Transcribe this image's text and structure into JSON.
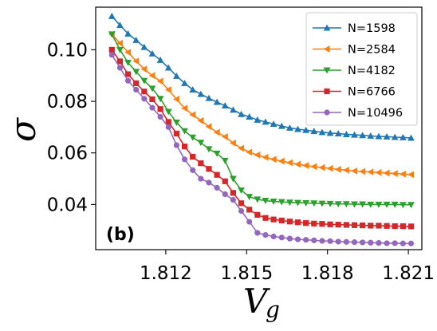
{
  "chart_data": {
    "type": "line",
    "title": "",
    "panel_label": "(b)",
    "xlabel": "V",
    "xlabel_sub": "g",
    "ylabel": "σ",
    "xlim": [
      1.8094,
      1.8215
    ],
    "ylim": [
      0.0225,
      0.1165
    ],
    "xticks": [
      1.812,
      1.815,
      1.818,
      1.821
    ],
    "xtick_labels": [
      "1.812",
      "1.815",
      "1.818",
      "1.821"
    ],
    "yticks": [
      0.04,
      0.06,
      0.08,
      0.1
    ],
    "ytick_labels": [
      "0.04",
      "0.06",
      "0.08",
      "0.10"
    ],
    "grid": false,
    "legend_position": "top-right",
    "x": [
      1.81,
      1.8103,
      1.8106,
      1.8109,
      1.8112,
      1.8115,
      1.8118,
      1.8121,
      1.8124,
      1.8127,
      1.813,
      1.8133,
      1.8136,
      1.8139,
      1.8142,
      1.8145,
      1.8148,
      1.8151,
      1.8154,
      1.8157,
      1.816,
      1.8163,
      1.8166,
      1.8169,
      1.8172,
      1.8175,
      1.8178,
      1.8181,
      1.8184,
      1.8187,
      1.819,
      1.8193,
      1.8196,
      1.8199,
      1.8202,
      1.8205,
      1.8208,
      1.8211
    ],
    "series": [
      {
        "name": "N=1598",
        "color": "#1f77b4",
        "marker": "triangle-up",
        "values": [
          0.113,
          0.1095,
          0.1062,
          0.1037,
          0.101,
          0.0985,
          0.096,
          0.093,
          0.0898,
          0.087,
          0.0845,
          0.0828,
          0.0812,
          0.0797,
          0.0783,
          0.0767,
          0.075,
          0.074,
          0.0728,
          0.072,
          0.0712,
          0.0704,
          0.0697,
          0.0692,
          0.0688,
          0.0684,
          0.068,
          0.0677,
          0.0675,
          0.0672,
          0.067,
          0.0668,
          0.0666,
          0.0664,
          0.0663,
          0.0661,
          0.066,
          0.0658
        ]
      },
      {
        "name": "N=2584",
        "color": "#ff7f0e",
        "marker": "triangle-left",
        "values": [
          0.106,
          0.1025,
          0.099,
          0.0956,
          0.0925,
          0.09,
          0.0878,
          0.0845,
          0.0808,
          0.0773,
          0.0748,
          0.0725,
          0.0702,
          0.068,
          0.0663,
          0.0638,
          0.0618,
          0.0603,
          0.0592,
          0.0583,
          0.0575,
          0.0568,
          0.0562,
          0.0556,
          0.0551,
          0.0547,
          0.0543,
          0.054,
          0.0536,
          0.0533,
          0.053,
          0.0528,
          0.0526,
          0.0524,
          0.0522,
          0.052,
          0.0518,
          0.0516
        ]
      },
      {
        "name": "N=4182",
        "color": "#2ca02c",
        "marker": "triangle-down",
        "values": [
          0.106,
          0.1,
          0.095,
          0.0915,
          0.088,
          0.085,
          0.081,
          0.076,
          0.0718,
          0.0685,
          0.066,
          0.064,
          0.0615,
          0.0598,
          0.057,
          0.05,
          0.0455,
          0.043,
          0.042,
          0.0415,
          0.0412,
          0.041,
          0.0408,
          0.0407,
          0.0406,
          0.0405,
          0.0404,
          0.0403,
          0.0402,
          0.0402,
          0.0401,
          0.0401,
          0.04,
          0.04,
          0.04,
          0.04,
          0.0399,
          0.0399
        ]
      },
      {
        "name": "N=6766",
        "color": "#d62728",
        "marker": "square",
        "values": [
          0.1,
          0.0955,
          0.0905,
          0.087,
          0.0838,
          0.0808,
          0.077,
          0.072,
          0.0675,
          0.0625,
          0.0585,
          0.056,
          0.0538,
          0.0515,
          0.049,
          0.0445,
          0.0405,
          0.038,
          0.036,
          0.0348,
          0.0342,
          0.0338,
          0.0334,
          0.0331,
          0.0328,
          0.0326,
          0.0325,
          0.0323,
          0.0322,
          0.0321,
          0.032,
          0.0319,
          0.0318,
          0.0318,
          0.0317,
          0.0316,
          0.0316,
          0.0315
        ]
      },
      {
        "name": "N=10496",
        "color": "#9467bd",
        "marker": "circle",
        "values": [
          0.098,
          0.093,
          0.088,
          0.0845,
          0.081,
          0.0775,
          0.074,
          0.07,
          0.063,
          0.0575,
          0.0533,
          0.05,
          0.0485,
          0.0465,
          0.044,
          0.0418,
          0.0375,
          0.0333,
          0.029,
          0.0282,
          0.0276,
          0.0272,
          0.0268,
          0.0265,
          0.0263,
          0.0261,
          0.0259,
          0.0258,
          0.0256,
          0.0255,
          0.0254,
          0.0253,
          0.0252,
          0.0251,
          0.025,
          0.025,
          0.0249,
          0.0249
        ]
      }
    ]
  }
}
